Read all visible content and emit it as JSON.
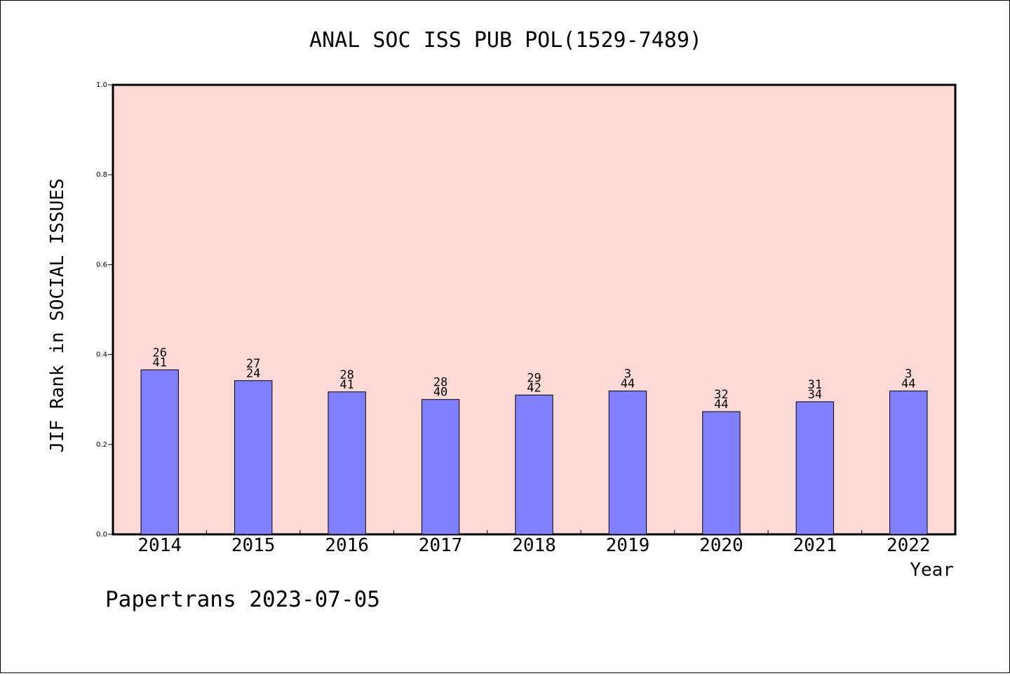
{
  "chart_data": {
    "type": "bar",
    "title": "ANAL SOC ISS PUB POL(1529-7489)",
    "ylabel": "JIF Rank in SOCIAL ISSUES",
    "xlabel": "Year",
    "categories": [
      "2014",
      "2015",
      "2016",
      "2017",
      "2018",
      "2019",
      "2020",
      "2021",
      "2022"
    ],
    "values": [
      0.366,
      0.342,
      0.317,
      0.3,
      0.31,
      0.319,
      0.273,
      0.295,
      0.319
    ],
    "labels": [
      [
        "26",
        "41"
      ],
      [
        "27",
        "24"
      ],
      [
        "28",
        "41"
      ],
      [
        "28",
        "40"
      ],
      [
        "29",
        "42"
      ],
      [
        "3",
        "44"
      ],
      [
        "32",
        "44"
      ],
      [
        "31",
        "34"
      ],
      [
        "3",
        "44"
      ]
    ],
    "ylim": [
      0,
      1.0
    ],
    "yticks": [
      "0.0",
      "0.2",
      "0.4",
      "0.6",
      "0.8",
      "1.0"
    ],
    "grid": false,
    "colors": {
      "plot_background": "#fddad6",
      "bar_fill": "#8080ff",
      "bar_stroke": "#000000"
    }
  },
  "footer": "Papertrans 2023-07-05"
}
